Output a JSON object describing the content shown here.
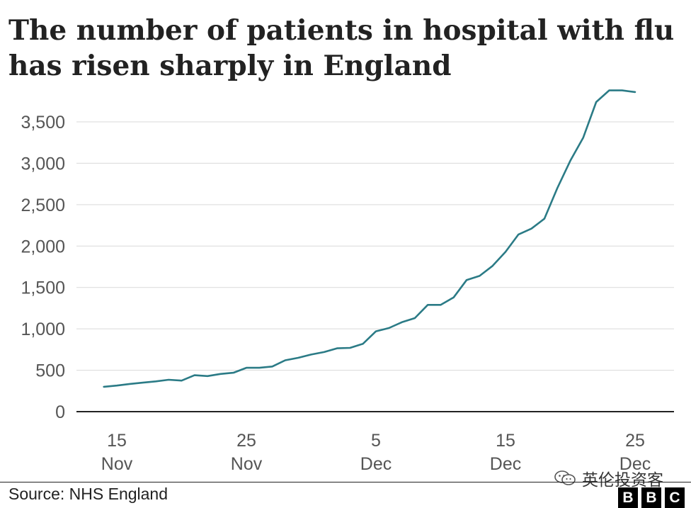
{
  "header": {
    "title_line1": "The number of patients in hospital with flu",
    "title_line2": "has risen sharply in England"
  },
  "footer": {
    "source": "Source: NHS England",
    "logo_letters": [
      "B",
      "B",
      "C"
    ],
    "watermark_text": "英伦投资客"
  },
  "colors": {
    "line": "#2b7b86",
    "grid": "#d9d9d9",
    "axis": "#222222",
    "tick_text": "#555555"
  },
  "chart_data": {
    "type": "line",
    "title": "The number of patients in hospital with flu has risen sharply in England",
    "xlabel": "",
    "ylabel": "",
    "ylim": [
      0,
      3700
    ],
    "yticks": [
      0,
      500,
      1000,
      1500,
      2000,
      2500,
      3000,
      3500
    ],
    "ytick_labels": [
      "0",
      "500",
      "1,000",
      "1,500",
      "2,000",
      "2,500",
      "3,000",
      "3,500"
    ],
    "xticks": [
      {
        "date": "2024-11-15",
        "day": "15",
        "month": "Nov"
      },
      {
        "date": "2024-11-25",
        "day": "25",
        "month": "Nov"
      },
      {
        "date": "2024-12-05",
        "day": "5",
        "month": "Dec"
      },
      {
        "date": "2024-12-15",
        "day": "15",
        "month": "Dec"
      },
      {
        "date": "2024-12-25",
        "day": "25",
        "month": "Dec"
      }
    ],
    "grid": true,
    "series": [
      {
        "x": [
          "2024-11-14",
          "2024-11-15",
          "2024-11-16",
          "2024-11-17",
          "2024-11-18",
          "2024-11-19",
          "2024-11-20",
          "2024-11-21",
          "2024-11-22",
          "2024-11-23",
          "2024-11-24",
          "2024-11-25",
          "2024-11-26",
          "2024-11-27",
          "2024-11-28",
          "2024-11-29",
          "2024-11-30",
          "2024-12-01",
          "2024-12-02",
          "2024-12-03",
          "2024-12-04",
          "2024-12-05",
          "2024-12-06",
          "2024-12-07",
          "2024-12-08",
          "2024-12-09",
          "2024-12-10",
          "2024-12-11",
          "2024-12-12",
          "2024-12-13",
          "2024-12-14",
          "2024-12-15",
          "2024-12-16",
          "2024-12-17",
          "2024-12-18",
          "2024-12-19",
          "2024-12-20",
          "2024-12-21",
          "2024-12-22",
          "2024-12-23",
          "2024-12-24",
          "2024-12-25"
        ],
        "values": [
          300,
          315,
          335,
          350,
          365,
          385,
          375,
          440,
          430,
          455,
          470,
          530,
          530,
          545,
          620,
          650,
          690,
          720,
          765,
          770,
          820,
          970,
          1010,
          1080,
          1130,
          1290,
          1290,
          1380,
          1590,
          1640,
          1760,
          1930,
          2140,
          2210,
          2330,
          2700,
          3030,
          3310,
          3740,
          3880,
          3880,
          3860
        ]
      }
    ]
  }
}
